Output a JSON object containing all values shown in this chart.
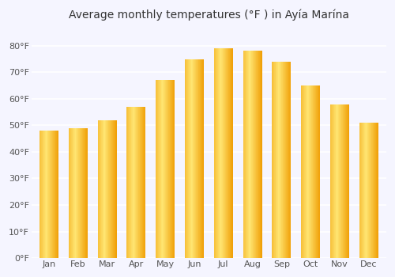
{
  "months": [
    "Jan",
    "Feb",
    "Mar",
    "Apr",
    "May",
    "Jun",
    "Jul",
    "Aug",
    "Sep",
    "Oct",
    "Nov",
    "Dec"
  ],
  "values": [
    48,
    49,
    52,
    57,
    67,
    75,
    79,
    78,
    74,
    65,
    58,
    51
  ],
  "title": "Average monthly temperatures (°F ) in Ayía Marína",
  "ylabel_ticks": [
    "0°F",
    "10°F",
    "20°F",
    "30°F",
    "40°F",
    "50°F",
    "60°F",
    "70°F",
    "80°F"
  ],
  "ytick_values": [
    0,
    10,
    20,
    30,
    40,
    50,
    60,
    70,
    80
  ],
  "ylim": [
    0,
    88
  ],
  "bar_color_light": "#FFD966",
  "bar_color_dark": "#F5A800",
  "background_color": "#f5f5ff",
  "plot_bg_color": "#f5f5ff",
  "grid_color": "#ffffff",
  "title_fontsize": 10,
  "tick_fontsize": 8,
  "bar_width": 0.65
}
